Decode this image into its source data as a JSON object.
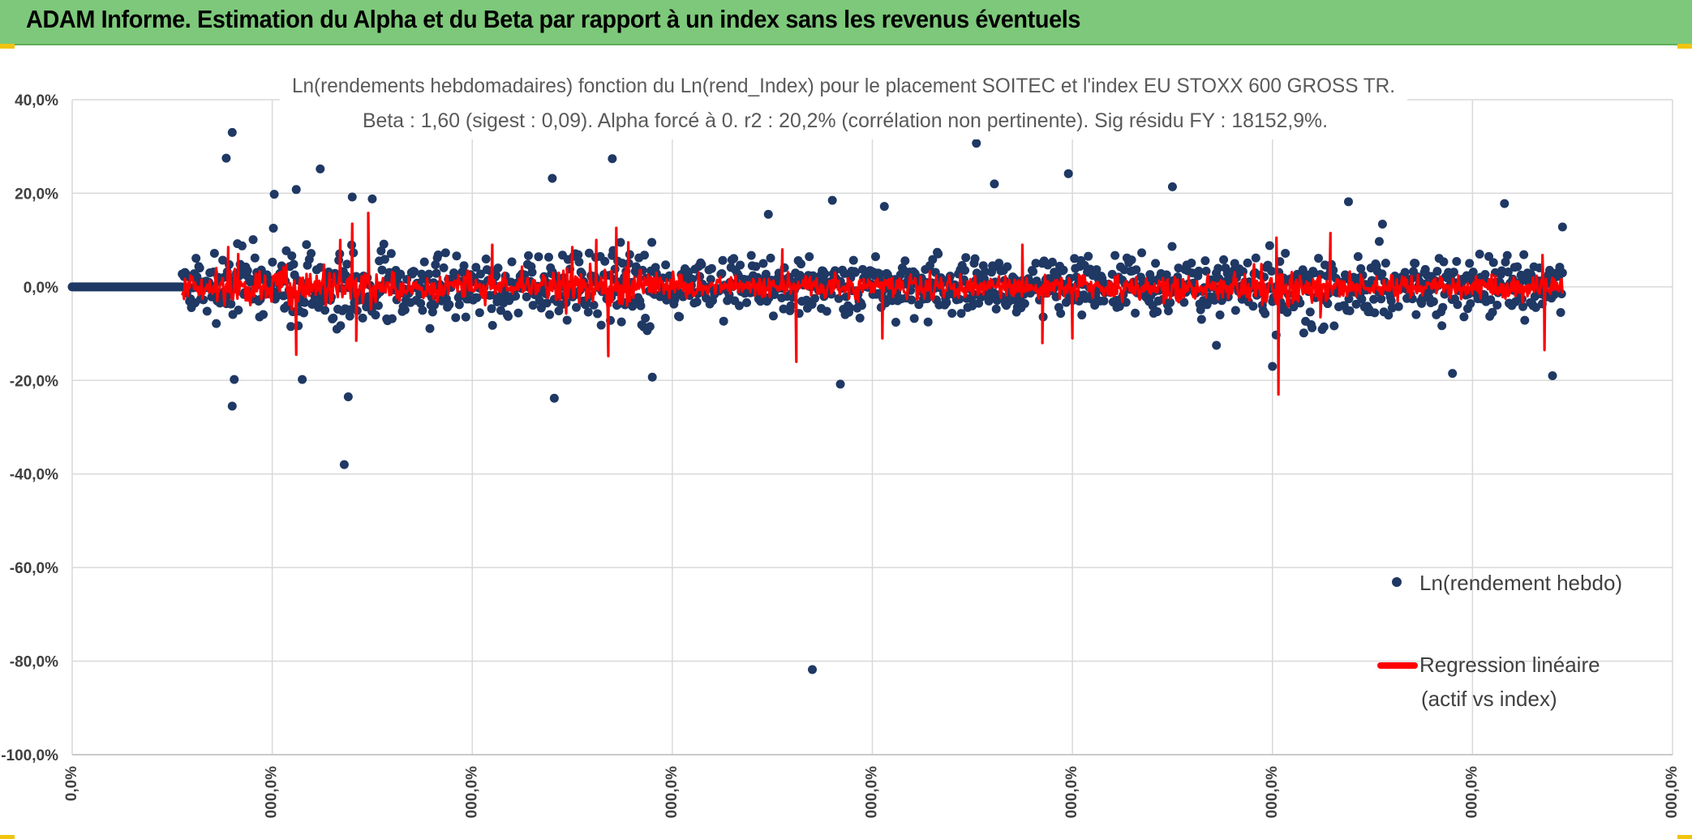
{
  "header": {
    "title": "ADAM Informe. Estimation du Alpha et du Beta par rapport à un index sans les revenus éventuels"
  },
  "colors": {
    "banner": "#7dc87a",
    "points": "#1f3864",
    "regression": "#ff0000",
    "grid": "#d9d9d9"
  },
  "chart_data": {
    "type": "scatter",
    "title_line1": "Ln(rendements hebdomadaires) fonction du Ln(rend_Index) pour le placement SOITEC et l'index EU STOXX 600 GROSS TR.",
    "title_line2": "Beta : 1,60 (sigest : 0,09). Alpha forcé à 0. r2 : 20,2% (corrélation non pertinente). Sig résidu FY : 18152,9%.",
    "beta": 1.6,
    "sigest": 0.09,
    "r2_percent": 20.2,
    "ylim": [
      -100,
      40
    ],
    "y_ticks": [
      "40,0%",
      "20,0%",
      "0,0%",
      "-20,0%",
      "-40,0%",
      "-60,0%",
      "-80,0%",
      "-100,0%"
    ],
    "x_ticks": [
      "0,0%",
      "000,0%",
      "000,0%",
      "000,0%",
      "000,0%",
      "000,0%",
      "000,0%",
      "000,0%",
      "000,0%"
    ],
    "xlim": [
      0,
      8
    ],
    "legend": [
      {
        "label": "Ln(rendement hebdo)",
        "marker": "dot"
      },
      {
        "label_line1": "Regression linéaire",
        "label_line2": "(actif vs index)",
        "marker": "line"
      }
    ],
    "series": [
      {
        "name": "Ln(rendement hebdo)",
        "flat_segment": {
          "x_start": 0,
          "x_end": 0.55,
          "y": 0
        },
        "noise_range": {
          "x_start": 0.55,
          "x_end": 7.45
        },
        "outliers": [
          {
            "x": 0.8,
            "y": 33.0
          },
          {
            "x": 0.77,
            "y": 27.5
          },
          {
            "x": 0.8,
            "y": -25.5
          },
          {
            "x": 0.81,
            "y": -19.8
          },
          {
            "x": 1.12,
            "y": 20.8
          },
          {
            "x": 1.01,
            "y": 19.8
          },
          {
            "x": 1.24,
            "y": 25.2
          },
          {
            "x": 1.15,
            "y": -19.8
          },
          {
            "x": 1.38,
            "y": -23.5
          },
          {
            "x": 1.36,
            "y": -38.0
          },
          {
            "x": 1.4,
            "y": 19.2
          },
          {
            "x": 1.5,
            "y": 18.8
          },
          {
            "x": 2.41,
            "y": -23.8
          },
          {
            "x": 2.4,
            "y": 23.2
          },
          {
            "x": 2.7,
            "y": 27.4
          },
          {
            "x": 3.48,
            "y": 15.5
          },
          {
            "x": 3.8,
            "y": 18.5
          },
          {
            "x": 3.84,
            "y": -20.8
          },
          {
            "x": 4.06,
            "y": 17.2
          },
          {
            "x": 4.52,
            "y": 30.7
          },
          {
            "x": 4.61,
            "y": 22.0
          },
          {
            "x": 4.98,
            "y": 24.2
          },
          {
            "x": 3.7,
            "y": -81.8
          },
          {
            "x": 5.5,
            "y": 21.4
          },
          {
            "x": 6.38,
            "y": 18.2
          },
          {
            "x": 6.55,
            "y": 13.4
          },
          {
            "x": 6.9,
            "y": -18.5
          },
          {
            "x": 7.16,
            "y": 17.8
          },
          {
            "x": 7.4,
            "y": -19.0
          },
          {
            "x": 6.0,
            "y": -17.0
          },
          {
            "x": 7.45,
            "y": 12.8
          },
          {
            "x": 5.72,
            "y": -12.5
          },
          {
            "x": 2.9,
            "y": -19.3
          }
        ]
      },
      {
        "name": "Regression linéaire (actif vs index)",
        "spikes": [
          {
            "x": 0.78,
            "y": 8.5
          },
          {
            "x": 0.83,
            "y": 7.0
          },
          {
            "x": 1.12,
            "y": -14.5
          },
          {
            "x": 1.34,
            "y": 10.0
          },
          {
            "x": 1.4,
            "y": 13.5
          },
          {
            "x": 1.48,
            "y": 15.8
          },
          {
            "x": 1.42,
            "y": -11.5
          },
          {
            "x": 2.1,
            "y": 9.0
          },
          {
            "x": 2.5,
            "y": 8.5
          },
          {
            "x": 2.62,
            "y": 10.0
          },
          {
            "x": 2.68,
            "y": -14.8
          },
          {
            "x": 2.72,
            "y": 12.6
          },
          {
            "x": 2.78,
            "y": 9.5
          },
          {
            "x": 3.62,
            "y": -16.0
          },
          {
            "x": 3.55,
            "y": 8.0
          },
          {
            "x": 4.05,
            "y": -11.0
          },
          {
            "x": 4.75,
            "y": 9.0
          },
          {
            "x": 4.85,
            "y": -12.0
          },
          {
            "x": 5.0,
            "y": -11.0
          },
          {
            "x": 6.03,
            "y": -23.0
          },
          {
            "x": 6.02,
            "y": 10.5
          },
          {
            "x": 6.29,
            "y": 11.5
          },
          {
            "x": 6.24,
            "y": -6.5
          },
          {
            "x": 7.36,
            "y": -13.5
          },
          {
            "x": 7.35,
            "y": 6.8
          }
        ]
      }
    ]
  }
}
